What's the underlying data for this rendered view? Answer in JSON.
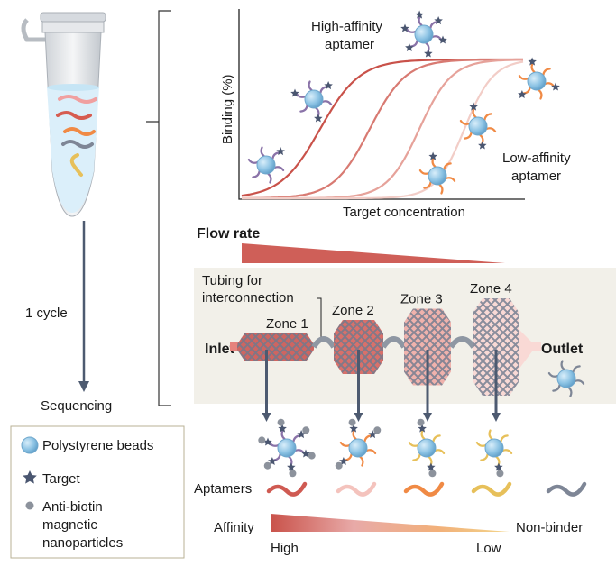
{
  "left": {
    "cycle_label": "1 cycle",
    "sequencing_label": "Sequencing"
  },
  "chart": {
    "y_axis_label": "Binding (%)",
    "x_axis_label": "Target concentration",
    "high_affinity_label": [
      "High-affinity",
      "aptamer"
    ],
    "low_affinity_label": [
      "Low-affinity",
      "aptamer"
    ],
    "curve_colors": [
      "#c9524a",
      "#d87a72",
      "#e6a29a",
      "#f2cdc7"
    ]
  },
  "flow": {
    "title": "Flow rate",
    "color": "#cf5f58"
  },
  "device": {
    "tubing_label": [
      "Tubing for",
      "interconnection"
    ],
    "inlet": "Inlet",
    "outlet": "Outlet",
    "zones": [
      "Zone 1",
      "Zone 2",
      "Zone 3",
      "Zone 4"
    ],
    "zone_colors": [
      "#cf6560",
      "#d9706a",
      "#f0b2ac",
      "#f9d9d5"
    ],
    "panel_color": "#f2f0e9"
  },
  "bottom": {
    "aptamers_label": "Aptamers",
    "aptamer_colors": [
      "#cf5a52",
      "#f4c3bd",
      "#f08a45",
      "#e7c05a",
      "#7e8696"
    ],
    "affinity_label": "Affinity",
    "non_binder_label": "Non-binder",
    "high_label": "High",
    "low_label": "Low"
  },
  "legend": {
    "beads": "Polystyrene beads",
    "target": "Target",
    "nanoparticles": [
      "Anti-biotin",
      "magnetic",
      "nanoparticles"
    ]
  }
}
